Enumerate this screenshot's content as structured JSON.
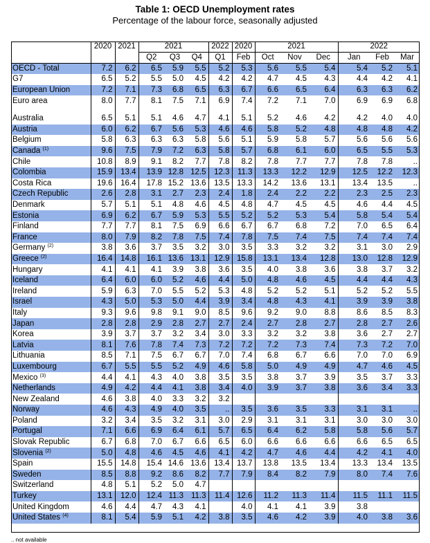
{
  "title": "Table 1: OECD Unemployment rates",
  "subtitle": "Percentage of the labour force, seasonally adjusted",
  "header": {
    "years": [
      "2020",
      "2021"
    ],
    "quarter_year": "2021",
    "q1_year": "2022",
    "feb_year": "2020",
    "months_2021_year": "2021",
    "months_2022_year": "2022",
    "quarters": [
      "Q2",
      "Q3",
      "Q4",
      "Q1"
    ],
    "feb": "Feb",
    "months": [
      "Oct",
      "Nov",
      "Dec",
      "Jan",
      "Feb",
      "Mar"
    ]
  },
  "rows": [
    {
      "name": "OECD - Total",
      "sup": "",
      "hl": true,
      "v": [
        "7.2",
        "6.2",
        "6.5",
        "5.9",
        "5.5",
        "5.2",
        "5.3",
        "5.6",
        "5.5",
        "5.4",
        "5.4",
        "5.2",
        "5.1"
      ]
    },
    {
      "name": "G7",
      "sup": "",
      "hl": false,
      "v": [
        "6.5",
        "5.2",
        "5.5",
        "5.0",
        "4.5",
        "4.2",
        "4.2",
        "4.7",
        "4.5",
        "4.3",
        "4.4",
        "4.2",
        "4.1"
      ]
    },
    {
      "name": "European Union",
      "sup": "",
      "hl": true,
      "v": [
        "7.2",
        "7.1",
        "7.3",
        "6.8",
        "6.5",
        "6.3",
        "6.7",
        "6.6",
        "6.5",
        "6.4",
        "6.3",
        "6.3",
        "6.2"
      ]
    },
    {
      "name": "Euro area",
      "sup": "",
      "hl": false,
      "v": [
        "8.0",
        "7.7",
        "8.1",
        "7.5",
        "7.1",
        "6.9",
        "7.4",
        "7.2",
        "7.1",
        "7.0",
        "6.9",
        "6.9",
        "6.8"
      ]
    },
    {
      "spacer": true
    },
    {
      "name": "Australia",
      "sup": "",
      "hl": false,
      "v": [
        "6.5",
        "5.1",
        "5.1",
        "4.6",
        "4.7",
        "4.1",
        "5.1",
        "5.2",
        "4.6",
        "4.2",
        "4.2",
        "4.0",
        "4.0"
      ]
    },
    {
      "name": "Austria",
      "sup": "",
      "hl": true,
      "v": [
        "6.0",
        "6.2",
        "6.7",
        "5.6",
        "5.3",
        "4.6",
        "4.6",
        "5.8",
        "5.2",
        "4.8",
        "4.8",
        "4.8",
        "4.2"
      ]
    },
    {
      "name": "Belgium",
      "sup": "",
      "hl": false,
      "v": [
        "5.8",
        "6.3",
        "6.3",
        "6.3",
        "5.8",
        "5.6",
        "5.1",
        "5.9",
        "5.8",
        "5.7",
        "5.6",
        "5.6",
        "5.6"
      ]
    },
    {
      "name": "Canada",
      "sup": "(1)",
      "hl": true,
      "v": [
        "9.6",
        "7.5",
        "7.9",
        "7.2",
        "6.3",
        "5.8",
        "5.7",
        "6.8",
        "6.1",
        "6.0",
        "6.5",
        "5.5",
        "5.3"
      ]
    },
    {
      "name": "Chile",
      "sup": "",
      "hl": false,
      "v": [
        "10.8",
        "8.9",
        "9.1",
        "8.2",
        "7.7",
        "7.8",
        "8.2",
        "7.8",
        "7.7",
        "7.7",
        "7.8",
        "7.8",
        ".."
      ]
    },
    {
      "name": "Colombia",
      "sup": "",
      "hl": true,
      "v": [
        "15.9",
        "13.4",
        "13.9",
        "12.8",
        "12.5",
        "12.3",
        "11.3",
        "13.3",
        "12.2",
        "12.9",
        "12.5",
        "12.2",
        "12.3"
      ]
    },
    {
      "name": "Costa Rica",
      "sup": "",
      "hl": false,
      "v": [
        "19.6",
        "16.4",
        "17.8",
        "15.2",
        "13.6",
        "13.5",
        "13.3",
        "14.2",
        "13.6",
        "13.1",
        "13.4",
        "13.5",
        ".."
      ]
    },
    {
      "name": "Czech Republic",
      "sup": "",
      "hl": true,
      "v": [
        "2.6",
        "2.8",
        "3.1",
        "2.7",
        "2.3",
        "2.4",
        "1.8",
        "2.4",
        "2.2",
        "2.2",
        "2.3",
        "2.5",
        "2.3"
      ]
    },
    {
      "name": "Denmark",
      "sup": "",
      "hl": false,
      "v": [
        "5.7",
        "5.1",
        "5.1",
        "4.8",
        "4.6",
        "4.5",
        "4.8",
        "4.7",
        "4.5",
        "4.5",
        "4.6",
        "4.4",
        "4.5"
      ]
    },
    {
      "name": "Estonia",
      "sup": "",
      "hl": true,
      "v": [
        "6.9",
        "6.2",
        "6.7",
        "5.9",
        "5.3",
        "5.5",
        "5.2",
        "5.2",
        "5.3",
        "5.4",
        "5.8",
        "5.4",
        "5.4"
      ]
    },
    {
      "name": "Finland",
      "sup": "",
      "hl": false,
      "v": [
        "7.7",
        "7.7",
        "8.1",
        "7.5",
        "6.9",
        "6.6",
        "6.7",
        "6.7",
        "6.8",
        "7.2",
        "7.0",
        "6.5",
        "6.4"
      ]
    },
    {
      "name": "France",
      "sup": "",
      "hl": true,
      "v": [
        "8.0",
        "7.9",
        "8.2",
        "7.8",
        "7.5",
        "7.4",
        "7.8",
        "7.5",
        "7.4",
        "7.5",
        "7.4",
        "7.4",
        "7.4"
      ]
    },
    {
      "name": "Germany",
      "sup": "(2)",
      "hl": false,
      "v": [
        "3.8",
        "3.6",
        "3.7",
        "3.5",
        "3.2",
        "3.0",
        "3.5",
        "3.3",
        "3.2",
        "3.2",
        "3.1",
        "3.0",
        "2.9"
      ]
    },
    {
      "name": "Greece",
      "sup": "(2)",
      "hl": true,
      "v": [
        "16.4",
        "14.8",
        "16.1",
        "13.6",
        "13.1",
        "12.9",
        "15.8",
        "13.1",
        "13.4",
        "12.8",
        "13.0",
        "12.8",
        "12.9"
      ]
    },
    {
      "name": "Hungary",
      "sup": "",
      "hl": false,
      "v": [
        "4.1",
        "4.1",
        "4.1",
        "3.9",
        "3.8",
        "3.6",
        "3.5",
        "4.0",
        "3.8",
        "3.6",
        "3.8",
        "3.7",
        "3.2"
      ]
    },
    {
      "name": "Iceland",
      "sup": "",
      "hl": true,
      "v": [
        "6.4",
        "6.0",
        "6.0",
        "5.2",
        "4.6",
        "4.4",
        "5.0",
        "4.8",
        "4.6",
        "4.5",
        "4.4",
        "4.4",
        "4.3"
      ]
    },
    {
      "name": "Ireland",
      "sup": "",
      "hl": false,
      "v": [
        "5.9",
        "6.3",
        "7.0",
        "5.5",
        "5.2",
        "5.3",
        "4.8",
        "5.2",
        "5.2",
        "5.1",
        "5.2",
        "5.2",
        "5.5"
      ]
    },
    {
      "name": "Israel",
      "sup": "",
      "hl": true,
      "v": [
        "4.3",
        "5.0",
        "5.3",
        "5.0",
        "4.4",
        "3.9",
        "3.4",
        "4.8",
        "4.3",
        "4.1",
        "3.9",
        "3.9",
        "3.8"
      ]
    },
    {
      "name": "Italy",
      "sup": "",
      "hl": false,
      "v": [
        "9.3",
        "9.6",
        "9.8",
        "9.1",
        "9.0",
        "8.5",
        "9.6",
        "9.2",
        "9.0",
        "8.8",
        "8.6",
        "8.5",
        "8.3"
      ]
    },
    {
      "name": "Japan",
      "sup": "",
      "hl": true,
      "v": [
        "2.8",
        "2.8",
        "2.9",
        "2.8",
        "2.7",
        "2.7",
        "2.4",
        "2.7",
        "2.8",
        "2.7",
        "2.8",
        "2.7",
        "2.6"
      ]
    },
    {
      "name": "Korea",
      "sup": "",
      "hl": false,
      "v": [
        "3.9",
        "3.7",
        "3.7",
        "3.2",
        "3.4",
        "3.0",
        "3.3",
        "3.2",
        "3.2",
        "3.8",
        "3.6",
        "2.7",
        "2.7"
      ]
    },
    {
      "name": "Latvia",
      "sup": "",
      "hl": true,
      "v": [
        "8.1",
        "7.6",
        "7.8",
        "7.4",
        "7.3",
        "7.2",
        "7.2",
        "7.2",
        "7.3",
        "7.4",
        "7.3",
        "7.2",
        "7.0"
      ]
    },
    {
      "name": "Lithuania",
      "sup": "",
      "hl": false,
      "v": [
        "8.5",
        "7.1",
        "7.5",
        "6.7",
        "6.7",
        "7.0",
        "7.4",
        "6.8",
        "6.7",
        "6.6",
        "7.0",
        "7.0",
        "6.9"
      ]
    },
    {
      "name": "Luxembourg",
      "sup": "",
      "hl": true,
      "v": [
        "6.7",
        "5.5",
        "5.5",
        "5.2",
        "4.9",
        "4.6",
        "5.8",
        "5.0",
        "4.9",
        "4.9",
        "4.7",
        "4.6",
        "4.5"
      ]
    },
    {
      "name": "Mexico",
      "sup": "(3)",
      "hl": false,
      "v": [
        "4.4",
        "4.1",
        "4.3",
        "4.0",
        "3.8",
        "3.5",
        "3.5",
        "3.8",
        "3.7",
        "3.9",
        "3.5",
        "3.7",
        "3.3"
      ]
    },
    {
      "name": "Netherlands",
      "sup": "",
      "hl": true,
      "v": [
        "4.9",
        "4.2",
        "4.4",
        "4.1",
        "3.8",
        "3.4",
        "4.0",
        "3.9",
        "3.7",
        "3.8",
        "3.6",
        "3.4",
        "3.3"
      ]
    },
    {
      "name": "New Zealand",
      "sup": "",
      "hl": false,
      "v": [
        "4.6",
        "3.8",
        "4.0",
        "3.3",
        "3.2",
        "3.2",
        "",
        "",
        "",
        "",
        "",
        "",
        ""
      ]
    },
    {
      "name": "Norway",
      "sup": "",
      "hl": true,
      "v": [
        "4.6",
        "4.3",
        "4.9",
        "4.0",
        "3.5",
        "..",
        "3.5",
        "3.6",
        "3.5",
        "3.3",
        "3.1",
        "3.1",
        ".."
      ]
    },
    {
      "name": "Poland",
      "sup": "",
      "hl": false,
      "v": [
        "3.2",
        "3.4",
        "3.5",
        "3.2",
        "3.1",
        "3.0",
        "2.9",
        "3.1",
        "3.1",
        "3.1",
        "3.0",
        "3.0",
        "3.0"
      ]
    },
    {
      "name": "Portugal",
      "sup": "",
      "hl": true,
      "v": [
        "7.1",
        "6.6",
        "6.9",
        "6.4",
        "6.1",
        "5.7",
        "6.5",
        "6.4",
        "6.2",
        "5.8",
        "5.8",
        "5.6",
        "5.7"
      ]
    },
    {
      "name": "Slovak Republic",
      "sup": "",
      "hl": false,
      "v": [
        "6.7",
        "6.8",
        "7.0",
        "6.7",
        "6.6",
        "6.5",
        "6.0",
        "6.6",
        "6.6",
        "6.6",
        "6.6",
        "6.5",
        "6.5"
      ]
    },
    {
      "name": "Slovenia",
      "sup": "(2)",
      "hl": true,
      "v": [
        "5.0",
        "4.8",
        "4.6",
        "4.5",
        "4.6",
        "4.1",
        "4.2",
        "4.7",
        "4.6",
        "4.4",
        "4.2",
        "4.1",
        "4.0"
      ]
    },
    {
      "name": "Spain",
      "sup": "",
      "hl": false,
      "v": [
        "15.5",
        "14.8",
        "15.4",
        "14.6",
        "13.6",
        "13.4",
        "13.7",
        "13.8",
        "13.5",
        "13.4",
        "13.3",
        "13.4",
        "13.5"
      ]
    },
    {
      "name": "Sweden",
      "sup": "",
      "hl": true,
      "v": [
        "8.5",
        "8.8",
        "9.2",
        "8.6",
        "8.2",
        "7.7",
        "7.9",
        "8.4",
        "8.2",
        "7.9",
        "8.0",
        "7.4",
        "7.6"
      ]
    },
    {
      "name": "Switzerland",
      "sup": "",
      "hl": false,
      "v": [
        "4.8",
        "5.1",
        "5.2",
        "5.0",
        "4.7",
        "",
        "",
        "",
        "",
        "",
        "",
        "",
        ""
      ]
    },
    {
      "name": "Turkey",
      "sup": "",
      "hl": true,
      "v": [
        "13.1",
        "12.0",
        "12.4",
        "11.3",
        "11.3",
        "11.4",
        "12.6",
        "11.2",
        "11.3",
        "11.4",
        "11.5",
        "11.1",
        "11.5"
      ]
    },
    {
      "name": "United Kingdom",
      "sup": "",
      "hl": false,
      "v": [
        "4.6",
        "4.4",
        "4.7",
        "4.3",
        "4.1",
        "",
        "4.0",
        "4.1",
        "4.1",
        "3.9",
        "3.8",
        "",
        ""
      ]
    },
    {
      "name": "United States",
      "sup": "(4)",
      "hl": true,
      "v": [
        "8.1",
        "5.4",
        "5.9",
        "5.1",
        "4.2",
        "3.8",
        "3.5",
        "4.6",
        "4.2",
        "3.9",
        "4.0",
        "3.8",
        "3.6"
      ]
    }
  ],
  "footnote": ".. not available"
}
